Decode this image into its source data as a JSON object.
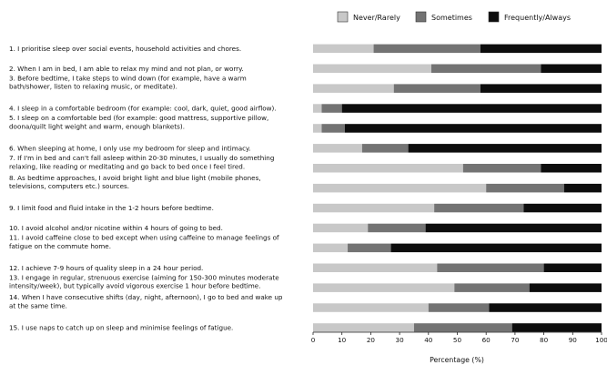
{
  "chart_data": {
    "type": "bar",
    "orientation": "horizontal",
    "stacked": true,
    "xlabel": "Percentage (%)",
    "xlim": [
      0,
      100
    ],
    "xticks": [
      "0",
      "10",
      "20",
      "30",
      "40",
      "50",
      "60",
      "70",
      "80",
      "90",
      "100"
    ],
    "grid": false,
    "legend_position": "top-right",
    "categories": [
      [
        "1. I prioritise sleep over social events, household activities and chores."
      ],
      [
        "2. When I am in bed, I am able to relax my mind and not plan, or worry."
      ],
      [
        "3. Before bedtime, I take steps to wind down (for example, have a warm",
        "bath/shower, listen to relaxing music, or meditate)."
      ],
      [
        "4. I sleep in a comfortable bedroom (for example: cool, dark, quiet, good airflow)."
      ],
      [
        "5. I sleep on a comfortable bed (for example: good mattress, supportive pillow,",
        "doona/quilt light weight and warm, enough blankets)."
      ],
      [
        "6. When sleeping at home, I only use my bedroom for sleep and intimacy."
      ],
      [
        "7. If I'm in bed and can't fall asleep within 20-30 minutes, I usually do something",
        "relaxing, like reading or meditating and go back to bed once I feel tired."
      ],
      [
        "8. As bedtime approaches, I avoid bright light and blue light (mobile phones,",
        "televisions, computers etc.) sources."
      ],
      [
        "9. I limit food and fluid intake in the 1-2 hours before bedtime."
      ],
      [
        "10. I avoid alcohol and/or nicotine within 4 hours of going to bed."
      ],
      [
        "11. I avoid caffeine close to bed except when using caffeine to manage feelings of",
        "fatigue on the commute home."
      ],
      [
        "12. I achieve 7-9 hours of quality sleep in a 24 hour period."
      ],
      [
        "13. I engage in regular, strenuous exercise (aiming for 150-300 minutes moderate",
        "intensity/week), but typically avoid vigorous exercise 1 hour before bedtime."
      ],
      [
        "14. When I have consecutive shifts (day, night, afternoon), I go to bed and wake up",
        "at the same time."
      ],
      [
        "15. I use naps to catch up on sleep and minimise feelings of fatigue."
      ]
    ],
    "series": [
      {
        "name": "Never/Rarely",
        "color": "#c8c8c8",
        "values": [
          21,
          41,
          28,
          3,
          3,
          17,
          52,
          60,
          42,
          19,
          12,
          43,
          49,
          40,
          35
        ]
      },
      {
        "name": "Sometimes",
        "color": "#737373",
        "values": [
          37,
          38,
          30,
          7,
          8,
          16,
          27,
          27,
          31,
          20,
          15,
          37,
          26,
          21,
          34
        ]
      },
      {
        "name": "Frequently/Always",
        "color": "#0d0d0d",
        "values": [
          42,
          21,
          42,
          90,
          89,
          67,
          21,
          13,
          27,
          61,
          73,
          20,
          25,
          39,
          31
        ]
      }
    ]
  }
}
